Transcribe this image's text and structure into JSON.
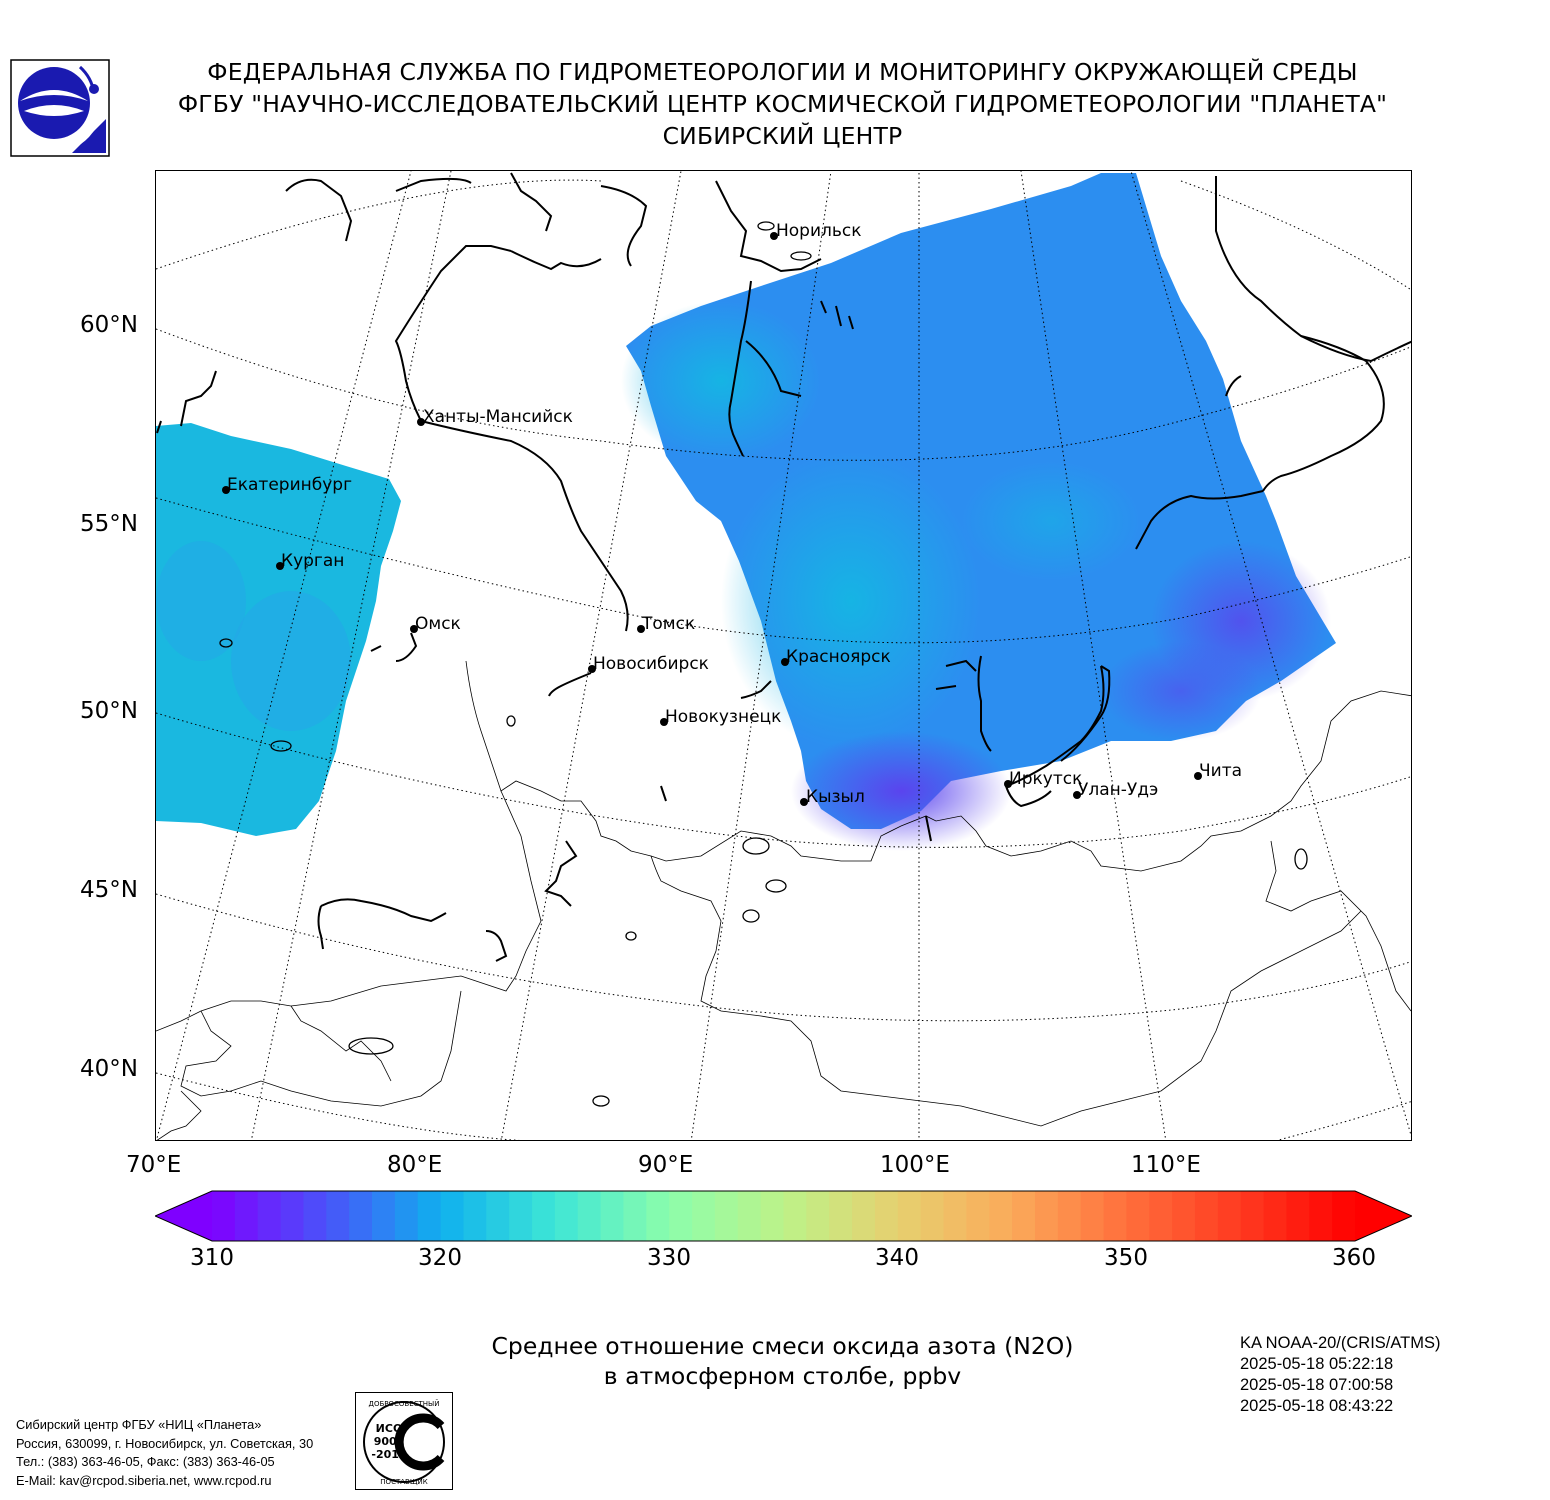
{
  "header": {
    "line1": "ФЕДЕРАЛЬНАЯ СЛУЖБА ПО ГИДРОМЕТЕОРОЛОГИИ И МОНИТОРИНГУ ОКРУЖАЮЩЕЙ СРЕДЫ",
    "line2": "ФГБУ \"НАУЧНО-ИССЛЕДОВАТЕЛЬСКИЙ ЦЕНТР КОСМИЧЕСКОЙ ГИДРОМЕТЕОРОЛОГИИ \"ПЛАНЕТА\"",
    "line3": "СИБИРСКИЙ ЦЕНТР"
  },
  "map": {
    "lat_labels": [
      "60°N",
      "55°N",
      "50°N",
      "45°N",
      "40°N"
    ],
    "lon_labels": [
      "70°E",
      "80°E",
      "90°E",
      "100°E",
      "110°E"
    ],
    "cities": [
      {
        "name": "Норильск"
      },
      {
        "name": "Ханты-Мансийск"
      },
      {
        "name": "Екатеринбург"
      },
      {
        "name": "Курган"
      },
      {
        "name": "Омск"
      },
      {
        "name": "Томск"
      },
      {
        "name": "Новосибирск"
      },
      {
        "name": "Красноярск"
      },
      {
        "name": "Новокузнецк"
      },
      {
        "name": "Кызыл"
      },
      {
        "name": "Иркутск"
      },
      {
        "name": "Улан-Удэ"
      },
      {
        "name": "Чита"
      }
    ],
    "colors": {
      "field_main": "#2c8ef0",
      "field_light": "#16b4e4",
      "field_low": "#5a44ee",
      "field_west": "#1ab8e0"
    }
  },
  "colorbar": {
    "min": 310,
    "max": 360,
    "ticks": [
      "310",
      "320",
      "330",
      "340",
      "350",
      "360"
    ],
    "colors": [
      "#7f00ff",
      "#4a53f9",
      "#0fb0ee",
      "#3ee6d6",
      "#8cfdab",
      "#bdf289",
      "#e6d06f",
      "#fbaa5a",
      "#ff6f3c",
      "#ff3a20",
      "#ff0000"
    ]
  },
  "title": {
    "line1": "Среднее отношение смеси оксида азота (N2O)",
    "line2": "в атмосферном столбе, ppbv"
  },
  "satellite": {
    "name": "KA NOAA-20/(CRIS/ATMS)",
    "times": [
      "2025-05-18 05:22:18",
      "2025-05-18 07:00:58",
      "2025-05-18 08:43:22"
    ]
  },
  "contact": {
    "line1": "Сибирский центр ФГБУ «НИЦ «Планета»",
    "line2": "Россия, 630099, г. Новосибирск, ул. Советская, 30",
    "line3": "Тел.: (383) 363-46-05, Факс: (383) 363-46-05",
    "line4": "E-Mail: kav@rcpod.siberia.net, www.rcpod.ru"
  },
  "iso_badge": {
    "top_text": "ДОБРОСОВЕСТНЫЙ",
    "code": "ИСО",
    "number": "9001",
    "year": "-2015",
    "bottom_text": "ПОСТАВЩИК"
  }
}
